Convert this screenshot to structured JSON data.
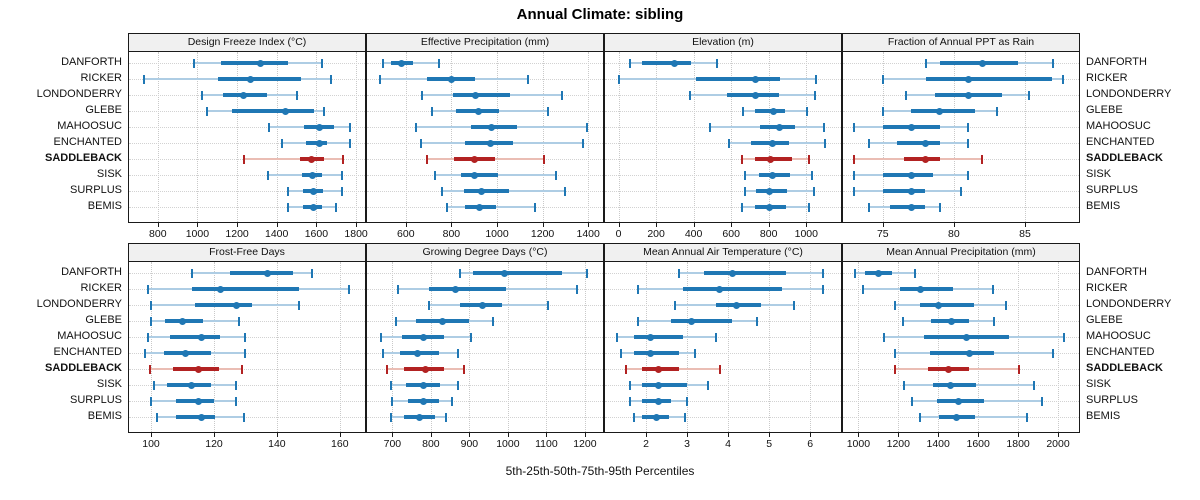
{
  "title": "Annual Climate: sibling",
  "caption": "5th-25th-50th-75th-95th Percentiles",
  "stations": [
    "DANFORTH",
    "RICKER",
    "LONDONDERRY",
    "GLEBE",
    "MAHOOSUC",
    "ENCHANTED",
    "SADDLEBACK",
    "SISK",
    "SURPLUS",
    "BEMIS"
  ],
  "highlight_station": "SADDLEBACK",
  "colors": {
    "blue": "#1f77b4",
    "blue_light": "#aecde4",
    "red": "#b22222",
    "red_light": "#eabdb4",
    "grid": "#c9c9c9",
    "header_bg": "#f0f0f0",
    "border": "#1a1a1a"
  },
  "chart_data": {
    "type": "multi-panel-percentile-dotplot",
    "rows": 2,
    "cols": 4,
    "percentile_labels": [
      "5th",
      "25th",
      "50th",
      "75th",
      "95th"
    ],
    "grid": "dotted",
    "panels": [
      {
        "title": "Design Freeze Index (°C)",
        "xlim": [
          655,
          1845
        ],
        "ticks": [
          800,
          1000,
          1200,
          1400,
          1600,
          1800
        ],
        "values": [
          [
            980,
            1120,
            1320,
            1455,
            1630
          ],
          [
            730,
            1105,
            1265,
            1525,
            1675
          ],
          [
            1025,
            1130,
            1230,
            1350,
            1500
          ],
          [
            1050,
            1175,
            1445,
            1590,
            1640
          ],
          [
            1360,
            1535,
            1615,
            1690,
            1770
          ],
          [
            1425,
            1545,
            1615,
            1655,
            1770
          ],
          [
            1235,
            1515,
            1575,
            1640,
            1735
          ],
          [
            1355,
            1525,
            1580,
            1630,
            1730
          ],
          [
            1455,
            1530,
            1585,
            1635,
            1730
          ],
          [
            1455,
            1530,
            1585,
            1630,
            1700
          ]
        ]
      },
      {
        "title": "Effective Precipitation (mm)",
        "xlim": [
          430,
          1465
        ],
        "ticks": [
          600,
          800,
          1000,
          1200,
          1400
        ],
        "values": [
          [
            500,
            535,
            580,
            630,
            745
          ],
          [
            485,
            695,
            800,
            905,
            1135
          ],
          [
            670,
            805,
            905,
            1055,
            1285
          ],
          [
            715,
            820,
            920,
            1010,
            1225
          ],
          [
            645,
            885,
            975,
            1090,
            1395
          ],
          [
            665,
            860,
            970,
            1070,
            1375
          ],
          [
            695,
            810,
            900,
            990,
            1205
          ],
          [
            730,
            840,
            900,
            1005,
            1260
          ],
          [
            760,
            855,
            930,
            1055,
            1300
          ],
          [
            780,
            860,
            925,
            995,
            1165
          ]
        ]
      },
      {
        "title": "Elevation (m)",
        "xlim": [
          -72,
          1185
        ],
        "ticks": [
          0,
          200,
          400,
          600,
          800,
          1000
        ],
        "values": [
          [
            60,
            125,
            300,
            385,
            525
          ],
          [
            0,
            410,
            730,
            860,
            1050
          ],
          [
            380,
            575,
            730,
            855,
            1045
          ],
          [
            665,
            725,
            825,
            885,
            1005
          ],
          [
            485,
            755,
            855,
            940,
            1095
          ],
          [
            590,
            705,
            820,
            910,
            1100
          ],
          [
            655,
            725,
            810,
            925,
            1015
          ],
          [
            675,
            750,
            820,
            915,
            1030
          ],
          [
            675,
            730,
            805,
            900,
            1040
          ],
          [
            655,
            725,
            805,
            890,
            1015
          ]
        ]
      },
      {
        "title": "Fraction of Annual PPT as Rain",
        "xlim": [
          72.2,
          88.8
        ],
        "ticks": [
          75,
          80,
          85
        ],
        "values": [
          [
            78,
            79,
            82,
            84.5,
            87
          ],
          [
            75,
            78,
            81,
            86.9,
            87.7
          ],
          [
            76.6,
            78.7,
            81,
            83.4,
            85.3
          ],
          [
            75,
            77,
            79,
            81.5,
            83
          ],
          [
            73,
            75,
            77,
            79,
            81
          ],
          [
            74,
            76,
            78,
            79,
            81
          ],
          [
            73,
            76.5,
            78,
            79,
            82
          ],
          [
            73,
            75,
            77,
            78.5,
            81
          ],
          [
            73,
            75,
            77,
            78,
            80.5
          ],
          [
            74,
            75.5,
            77,
            78,
            79
          ]
        ]
      },
      {
        "title": "Frost-Free Days",
        "xlim": [
          93,
          168
        ],
        "ticks": [
          100,
          120,
          140,
          160
        ],
        "values": [
          [
            113,
            125,
            137,
            145,
            151
          ],
          [
            99,
            113,
            122,
            147,
            163
          ],
          [
            100,
            114,
            127,
            132,
            147
          ],
          [
            100,
            104.5,
            110,
            116.5,
            128
          ],
          [
            99,
            106,
            116,
            122,
            130
          ],
          [
            98,
            104,
            111,
            119,
            130
          ],
          [
            99.5,
            107,
            115,
            121.5,
            129
          ],
          [
            101,
            105,
            113,
            119,
            127
          ],
          [
            100,
            108,
            115,
            120,
            127
          ],
          [
            102,
            108,
            116,
            120.5,
            129.5
          ]
        ]
      },
      {
        "title": "Growing Degree Days (°C)",
        "xlim": [
          634,
          1247
        ],
        "ticks": [
          700,
          800,
          900,
          1000,
          1100,
          1200
        ],
        "values": [
          [
            875,
            910,
            990,
            1140,
            1205
          ],
          [
            715,
            795,
            865,
            995,
            1180
          ],
          [
            795,
            875,
            935,
            985,
            1105
          ],
          [
            710,
            760,
            830,
            900,
            960
          ],
          [
            670,
            725,
            780,
            835,
            905
          ],
          [
            675,
            720,
            765,
            820,
            870
          ],
          [
            685,
            730,
            785,
            835,
            885
          ],
          [
            695,
            735,
            780,
            825,
            870
          ],
          [
            700,
            740,
            780,
            820,
            855
          ],
          [
            695,
            730,
            770,
            810,
            840
          ]
        ]
      },
      {
        "title": "Mean Annual Air Temperature (°C)",
        "xlim": [
          1.0,
          6.75
        ],
        "ticks": [
          2,
          3,
          4,
          5,
          6
        ],
        "values": [
          [
            2.8,
            3.4,
            4.1,
            5.4,
            6.3
          ],
          [
            1.8,
            2.9,
            3.8,
            5.3,
            6.3
          ],
          [
            2.7,
            3.7,
            4.2,
            4.8,
            5.6
          ],
          [
            1.8,
            2.6,
            3.1,
            4.1,
            4.7
          ],
          [
            1.3,
            1.7,
            2.1,
            2.9,
            3.7
          ],
          [
            1.4,
            1.7,
            2.1,
            2.8,
            3.2
          ],
          [
            1.5,
            1.9,
            2.3,
            2.8,
            3.8
          ],
          [
            1.6,
            1.9,
            2.3,
            3.0,
            3.5
          ],
          [
            1.6,
            1.9,
            2.3,
            2.6,
            3.0
          ],
          [
            1.7,
            1.9,
            2.25,
            2.55,
            2.95
          ]
        ]
      },
      {
        "title": "Mean Annual Precipitation (mm)",
        "xlim": [
          923,
          2105
        ],
        "ticks": [
          1000,
          1200,
          1400,
          1600,
          1800,
          2000
        ],
        "values": [
          [
            985,
            1035,
            1100,
            1170,
            1285
          ],
          [
            1025,
            1210,
            1310,
            1475,
            1675
          ],
          [
            1185,
            1310,
            1400,
            1580,
            1740
          ],
          [
            1225,
            1365,
            1465,
            1555,
            1680
          ],
          [
            1130,
            1330,
            1540,
            1755,
            2030
          ],
          [
            1185,
            1360,
            1555,
            1680,
            1975
          ],
          [
            1185,
            1350,
            1450,
            1555,
            1805
          ],
          [
            1230,
            1375,
            1460,
            1590,
            1880
          ],
          [
            1270,
            1395,
            1500,
            1630,
            1920
          ],
          [
            1310,
            1405,
            1490,
            1585,
            1845
          ]
        ]
      }
    ]
  }
}
